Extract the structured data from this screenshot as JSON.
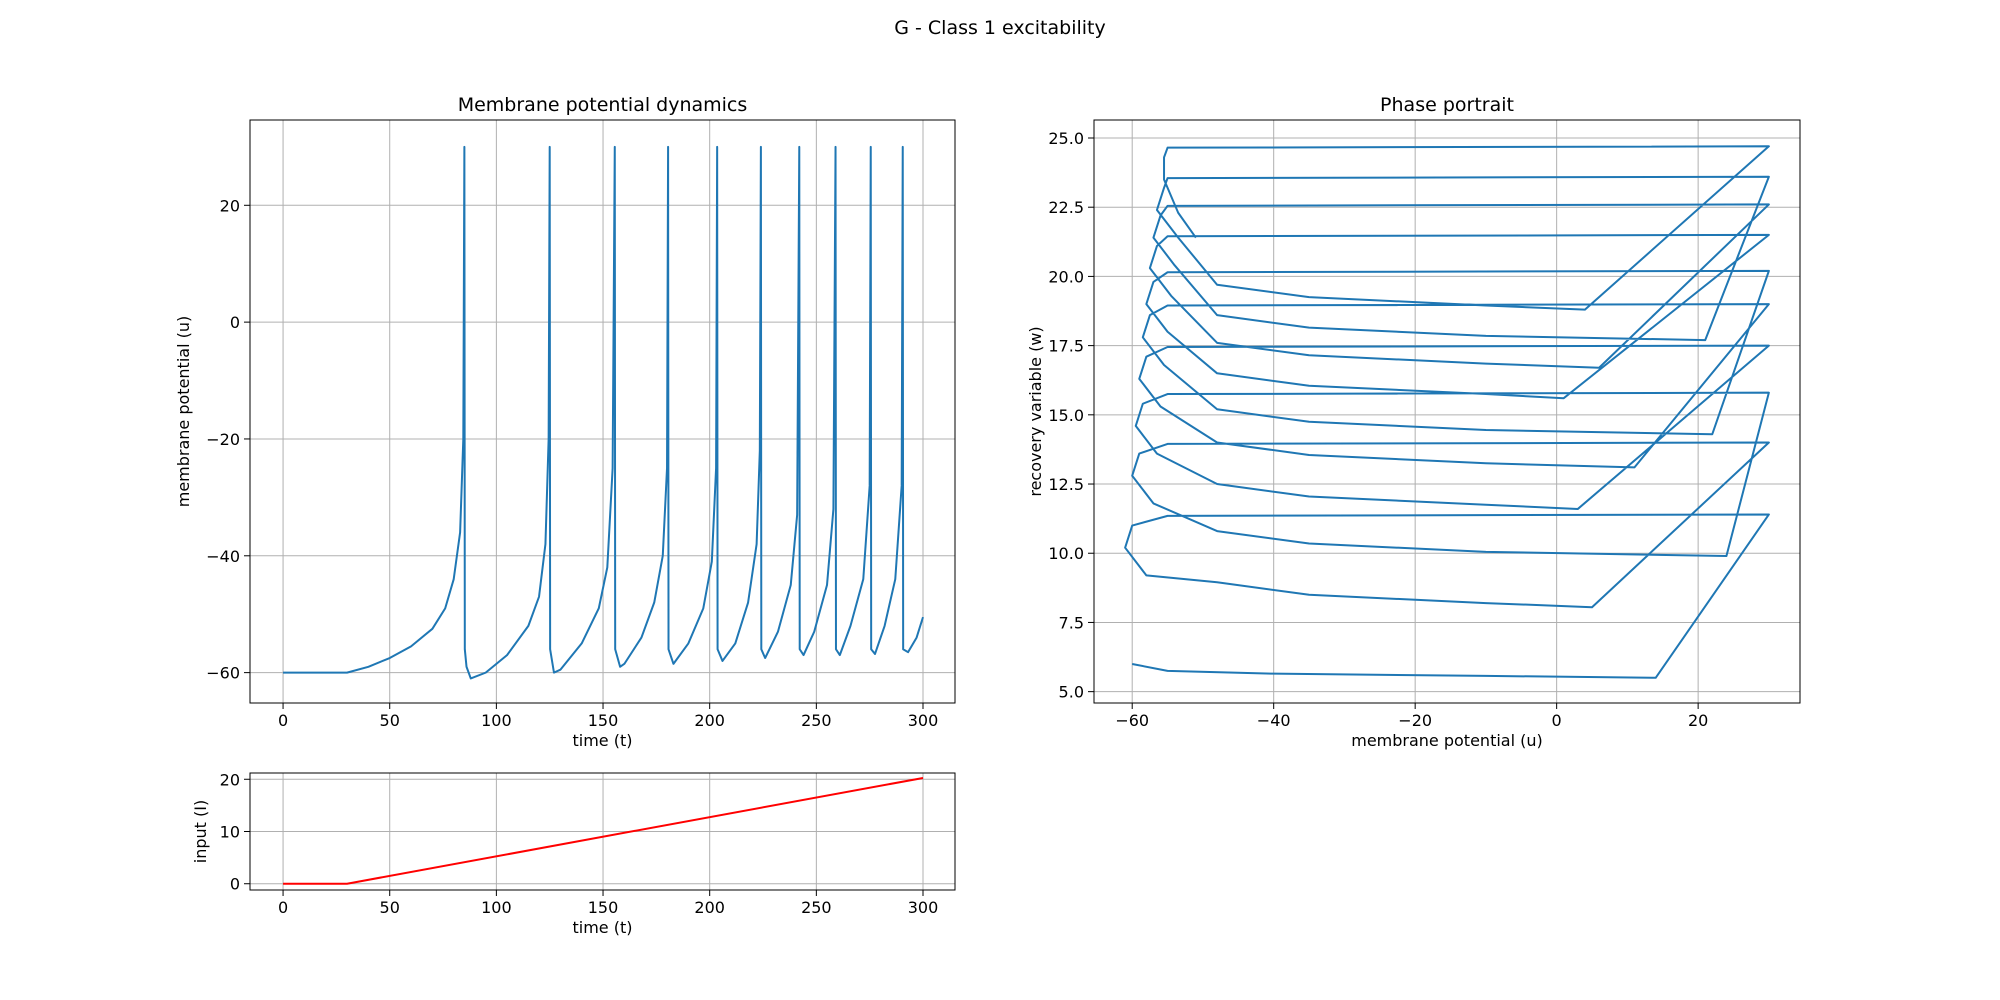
{
  "title": "G - Class 1 excitability",
  "chart_data": [
    {
      "type": "line",
      "title": "Membrane potential dynamics",
      "xlabel": "time (t)",
      "ylabel": "membrane potential (u)",
      "color": "#1f77b4",
      "grid": true,
      "x": [
        0,
        30,
        40,
        50,
        60,
        70,
        76,
        80,
        83,
        84.5,
        85,
        85.2,
        86,
        88,
        95,
        105,
        115,
        120,
        123,
        124.5,
        125,
        125.2,
        127,
        130,
        140,
        148,
        152,
        154.5,
        155.5,
        155.7,
        158,
        160,
        168,
        174,
        178,
        180,
        180.5,
        180.7,
        183,
        190,
        197,
        201,
        203,
        203.5,
        203.7,
        206,
        212,
        218,
        222,
        223.5,
        224,
        224.2,
        226,
        232,
        238,
        241,
        242,
        242.2,
        244,
        249,
        255,
        258,
        259,
        259.2,
        261,
        266,
        272,
        275,
        275.5,
        275.7,
        277.5,
        282,
        287,
        290,
        290.5,
        290.7,
        293,
        297,
        300
      ],
      "values": [
        -60,
        -60,
        -59,
        -57.5,
        -55.5,
        -52.5,
        -49,
        -44,
        -36,
        -20,
        30,
        -56,
        -59,
        -61,
        -60,
        -57,
        -52,
        -47,
        -38,
        -20,
        30,
        -56,
        -60,
        -59.5,
        -55,
        -49,
        -42,
        -25,
        30,
        -56,
        -59,
        -58.5,
        -54,
        -48,
        -40,
        -25,
        30,
        -56,
        -58.5,
        -55,
        -49,
        -41,
        -25,
        30,
        -56,
        -58,
        -55,
        -48,
        -38,
        -22,
        30,
        -56,
        -57.5,
        -53,
        -45,
        -33,
        30,
        -56,
        -57,
        -53,
        -45,
        -32,
        30,
        -56,
        -57,
        -52,
        -44,
        -28,
        30,
        -56,
        -56.8,
        -52,
        -44,
        -28,
        30,
        -56,
        -56.5,
        -54,
        -50.5
      ],
      "xlim": [
        -15.5,
        315
      ],
      "ylim": [
        -65.2,
        34.6
      ],
      "xticks": [
        0,
        50,
        100,
        150,
        200,
        250,
        300
      ],
      "yticks": [
        {
          "value": -60,
          "label": "−60"
        },
        {
          "value": -40,
          "label": "−40"
        },
        {
          "value": -20,
          "label": "−20"
        },
        0,
        20
      ]
    },
    {
      "type": "line",
      "title": "Phase portrait",
      "xlabel": "membrane potential (u)",
      "ylabel": "recovery variable (w)",
      "color": "#1f77b4",
      "grid": true,
      "x": [
        -60,
        -55,
        -40,
        -10,
        14,
        30,
        -55,
        -60,
        -61,
        -58,
        -48,
        -35,
        -10,
        5,
        30,
        -55,
        -59,
        -60,
        -57,
        -48,
        -35,
        -10,
        24,
        30,
        -55,
        -58.5,
        -59.5,
        -56.5,
        -48,
        -35,
        -10,
        3,
        30,
        -55,
        -58,
        -59,
        -56,
        -48,
        -35,
        -10,
        11,
        30,
        -55,
        -57.5,
        -58.5,
        -55.5,
        -48,
        -35,
        -10,
        22,
        30,
        -55,
        -57,
        -58,
        -55,
        -48,
        -35,
        -10,
        1,
        30,
        -55,
        -56.5,
        -57.5,
        -54.5,
        -48,
        -35,
        -10,
        6,
        30,
        -55,
        -56,
        -57,
        -54,
        -48,
        -35,
        -10,
        21,
        30,
        -55,
        -55.5,
        -56.5,
        -53.5,
        -48,
        -35,
        -10,
        4,
        30,
        -55,
        -55.5,
        -55.5,
        -53.5,
        -51
      ],
      "values": [
        6.0,
        5.75,
        5.65,
        5.57,
        5.5,
        11.4,
        11.35,
        11.0,
        10.2,
        9.2,
        8.95,
        8.5,
        8.2,
        8.05,
        14.0,
        13.95,
        13.6,
        12.8,
        11.8,
        10.8,
        10.35,
        10.05,
        9.9,
        15.8,
        15.75,
        15.4,
        14.6,
        13.6,
        12.5,
        12.05,
        11.75,
        11.6,
        17.5,
        17.45,
        17.1,
        16.3,
        15.3,
        14.0,
        13.55,
        13.25,
        13.1,
        19.0,
        18.95,
        18.6,
        17.8,
        16.8,
        15.2,
        14.75,
        14.45,
        14.3,
        20.2,
        20.15,
        19.8,
        19.0,
        18.0,
        16.5,
        16.05,
        15.75,
        15.6,
        21.5,
        21.45,
        21.1,
        20.3,
        19.3,
        17.6,
        17.15,
        16.85,
        16.7,
        22.6,
        22.55,
        22.2,
        21.4,
        20.4,
        18.6,
        18.15,
        17.85,
        17.7,
        23.6,
        23.55,
        23.2,
        22.4,
        21.4,
        19.7,
        19.25,
        18.95,
        18.8,
        24.7,
        24.65,
        24.3,
        23.5,
        22.3,
        21.4
      ],
      "xlim": [
        -65.4,
        34.4
      ],
      "ylim": [
        4.59,
        25.65
      ],
      "xticks": [
        {
          "value": -60,
          "label": "−60"
        },
        {
          "value": -40,
          "label": "−40"
        },
        {
          "value": -20,
          "label": "−20"
        },
        0,
        20
      ],
      "yticks": [
        {
          "value": 5,
          "label": "5.0"
        },
        7.5,
        {
          "value": 10,
          "label": "10.0"
        },
        12.5,
        {
          "value": 15,
          "label": "15.0"
        },
        17.5,
        {
          "value": 20,
          "label": "20.0"
        },
        22.5,
        {
          "value": 25,
          "label": "25.0"
        }
      ]
    },
    {
      "type": "line",
      "xlabel": "time (t)",
      "ylabel": "input (I)",
      "color": "#ff0000",
      "grid": true,
      "x": [
        0,
        30,
        300
      ],
      "values": [
        0,
        0,
        20.25
      ],
      "xlim": [
        -15.5,
        315
      ],
      "ylim": [
        -1.2,
        21.2
      ],
      "xticks": [
        0,
        50,
        100,
        150,
        200,
        250,
        300
      ],
      "yticks": [
        0,
        10,
        20
      ]
    }
  ]
}
